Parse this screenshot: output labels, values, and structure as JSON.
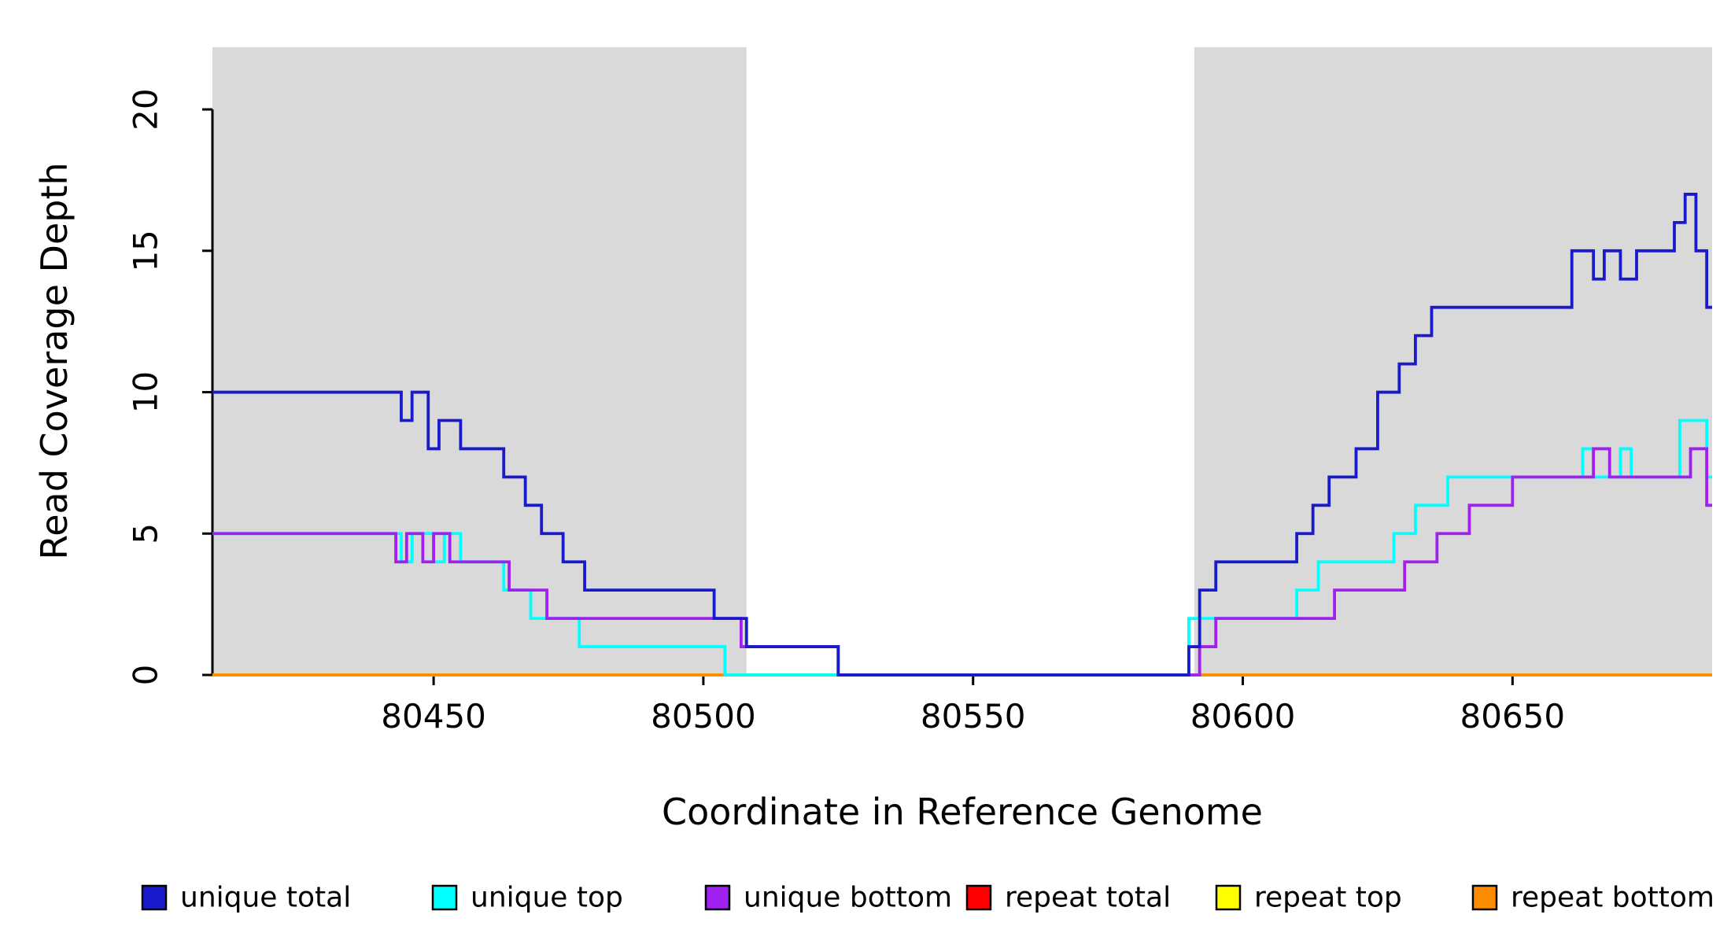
{
  "figure": {
    "background": "#ffffff",
    "text_color": "#000000"
  },
  "chart_data": {
    "type": "line",
    "subtype": "step-coverage-plot",
    "title": "",
    "xlabel": "Coordinate in Reference Genome",
    "ylabel": "Read Coverage Depth",
    "xlim": [
      80409,
      80687
    ],
    "ylim": [
      0,
      22.2
    ],
    "xticks": [
      80450,
      80500,
      80550,
      80600,
      80650
    ],
    "yticks": [
      0,
      5,
      10,
      15,
      20
    ],
    "grid": false,
    "legend_position": "bottom",
    "shade_color": "#d9d9d9",
    "shaded_regions": [
      {
        "x0": 80409,
        "x1": 80508
      },
      {
        "x0": 80591,
        "x1": 80687
      }
    ],
    "series": [
      {
        "name": "unique total",
        "color": "#1a1acd",
        "step": true,
        "points": [
          [
            80409,
            10
          ],
          [
            80444,
            9
          ],
          [
            80446,
            10
          ],
          [
            80449,
            8
          ],
          [
            80451,
            9
          ],
          [
            80455,
            8
          ],
          [
            80463,
            7
          ],
          [
            80467,
            6
          ],
          [
            80470,
            5
          ],
          [
            80474,
            4
          ],
          [
            80478,
            3
          ],
          [
            80502,
            2
          ],
          [
            80508,
            1
          ],
          [
            80525,
            0
          ],
          [
            80590,
            1
          ],
          [
            80592,
            3
          ],
          [
            80595,
            4
          ],
          [
            80610,
            5
          ],
          [
            80613,
            6
          ],
          [
            80616,
            7
          ],
          [
            80621,
            8
          ],
          [
            80625,
            10
          ],
          [
            80629,
            11
          ],
          [
            80632,
            12
          ],
          [
            80635,
            13
          ],
          [
            80661,
            15
          ],
          [
            80665,
            14
          ],
          [
            80667,
            15
          ],
          [
            80670,
            14
          ],
          [
            80673,
            15
          ],
          [
            80680,
            16
          ],
          [
            80682,
            17
          ],
          [
            80684,
            15
          ],
          [
            80686,
            13
          ]
        ]
      },
      {
        "name": "unique top",
        "color": "#00ffff",
        "step": true,
        "points": [
          [
            80409,
            5
          ],
          [
            80444,
            4
          ],
          [
            80446,
            5
          ],
          [
            80450,
            4
          ],
          [
            80452,
            5
          ],
          [
            80455,
            4
          ],
          [
            80463,
            3
          ],
          [
            80468,
            2
          ],
          [
            80477,
            1
          ],
          [
            80504,
            0
          ],
          [
            80590,
            2
          ],
          [
            80610,
            3
          ],
          [
            80614,
            4
          ],
          [
            80628,
            5
          ],
          [
            80632,
            6
          ],
          [
            80638,
            7
          ],
          [
            80663,
            8
          ],
          [
            80665,
            7
          ],
          [
            80670,
            8
          ],
          [
            80672,
            7
          ],
          [
            80681,
            9
          ],
          [
            80686,
            7
          ]
        ]
      },
      {
        "name": "unique bottom",
        "color": "#a020f0",
        "step": true,
        "points": [
          [
            80409,
            5
          ],
          [
            80443,
            4
          ],
          [
            80445,
            5
          ],
          [
            80448,
            4
          ],
          [
            80450,
            5
          ],
          [
            80453,
            4
          ],
          [
            80464,
            3
          ],
          [
            80471,
            2
          ],
          [
            80507,
            1
          ],
          [
            80525,
            0
          ],
          [
            80592,
            1
          ],
          [
            80595,
            2
          ],
          [
            80617,
            3
          ],
          [
            80630,
            4
          ],
          [
            80636,
            5
          ],
          [
            80642,
            6
          ],
          [
            80650,
            7
          ],
          [
            80665,
            8
          ],
          [
            80668,
            7
          ],
          [
            80683,
            8
          ],
          [
            80686,
            6
          ]
        ]
      },
      {
        "name": "repeat total",
        "color": "#ff0000",
        "step": true,
        "points": [
          [
            80409,
            0
          ]
        ]
      },
      {
        "name": "repeat top",
        "color": "#ffff00",
        "step": true,
        "points": [
          [
            80409,
            0
          ]
        ]
      },
      {
        "name": "repeat bottom",
        "color": "#ff8c00",
        "step": true,
        "points": [
          [
            80409,
            0
          ]
        ]
      }
    ]
  }
}
